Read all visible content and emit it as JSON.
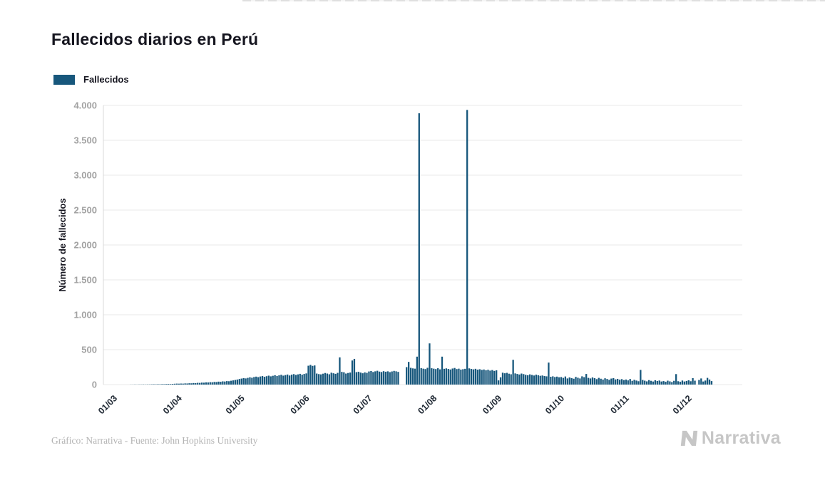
{
  "header": {
    "title": "Fallecidos diarios en Perú"
  },
  "legend": {
    "label": "Fallecidos",
    "swatch_color": "#17577c"
  },
  "chart_data": {
    "type": "bar",
    "title": "Fallecidos diarios en Perú",
    "legend_position": "top-left",
    "grid": true,
    "layout": {
      "x_offset": 15,
      "bar_step": 2.93,
      "bar_width": 2.3
    },
    "x_axis": {
      "tick_labels": [
        "01/03",
        "01/04",
        "01/05",
        "01/06",
        "01/07",
        "01/08",
        "01/09",
        "01/10",
        "01/11",
        "01/12"
      ],
      "tick_day_offsets": [
        0,
        31,
        61,
        92,
        122,
        153,
        184,
        214,
        245,
        275
      ]
    },
    "y_axis": {
      "label": "Número de fallecidos",
      "tick_labels": [
        "0",
        "500",
        "1.000",
        "1.500",
        "2.000",
        "2.500",
        "3.000",
        "3.500",
        "4.000"
      ],
      "tick_values": [
        0,
        500,
        1000,
        1500,
        2000,
        2500,
        3000,
        3500,
        4000
      ],
      "min": 0,
      "max": 4000
    },
    "series": [
      {
        "name": "Fallecidos",
        "color": "#17577c",
        "start_label": "01/03",
        "values": [
          0,
          0,
          0,
          0,
          0,
          0,
          0,
          0,
          1,
          1,
          2,
          1,
          2,
          2,
          3,
          2,
          3,
          3,
          4,
          5,
          4,
          6,
          5,
          7,
          6,
          8,
          9,
          8,
          10,
          12,
          14,
          13,
          15,
          14,
          17,
          16,
          19,
          18,
          22,
          21,
          25,
          24,
          28,
          27,
          31,
          30,
          34,
          33,
          38,
          36,
          42,
          40,
          46,
          44,
          50,
          48,
          55,
          60,
          66,
          72,
          80,
          86,
          92,
          88,
          96,
          104,
          98,
          108,
          114,
          106,
          116,
          122,
          112,
          120,
          128,
          118,
          126,
          134,
          124,
          132,
          140,
          128,
          136,
          144,
          130,
          142,
          150,
          138,
          146,
          154,
          142,
          152,
          160,
          270,
          282,
          268,
          274,
          158,
          150,
          146,
          156,
          166,
          158,
          148,
          170,
          162,
          154,
          168,
          390,
          182,
          176,
          158,
          166,
          172,
          345,
          368,
          178,
          184,
          172,
          162,
          174,
          168,
          188,
          194,
          180,
          190,
          198,
          186,
          180,
          192,
          184,
          190,
          178,
          188,
          196,
          190,
          182,
          0,
          0,
          0,
          250,
          325,
          240,
          232,
          228,
          400,
          3887,
          236,
          228,
          222,
          240,
          590,
          234,
          228,
          222,
          234,
          218,
          400,
          226,
          232,
          224,
          216,
          230,
          238,
          222,
          228,
          215,
          220,
          226,
          3935,
          232,
          224,
          218,
          226,
          214,
          220,
          210,
          216,
          205,
          212,
          200,
          208,
          196,
          204,
          60,
          104,
          170,
          162,
          168,
          156,
          148,
          355,
          160,
          152,
          144,
          158,
          150,
          140,
          134,
          146,
          138,
          130,
          142,
          134,
          126,
          130,
          122,
          118,
          315,
          112,
          118,
          108,
          114,
          104,
          108,
          96,
          116,
          88,
          102,
          92,
          84,
          110,
          98,
          88,
          118,
          106,
          152,
          96,
          88,
          102,
          92,
          78,
          96,
          84,
          72,
          90,
          80,
          68,
          86,
          92,
          74,
          82,
          70,
          78,
          64,
          72,
          60,
          80,
          54,
          68,
          58,
          48,
          210,
          66,
          56,
          46,
          64,
          54,
          44,
          62,
          52,
          58,
          44,
          50,
          40,
          56,
          46,
          36,
          54,
          150,
          48,
          40,
          58,
          44,
          52,
          62,
          48,
          92,
          56,
          0,
          66,
          88,
          44,
          58,
          96,
          72,
          50
        ]
      }
    ]
  },
  "footer": {
    "credit": "Gráfico: Narrativa - Fuente: John Hopkins University",
    "brand": "Narrativa"
  }
}
